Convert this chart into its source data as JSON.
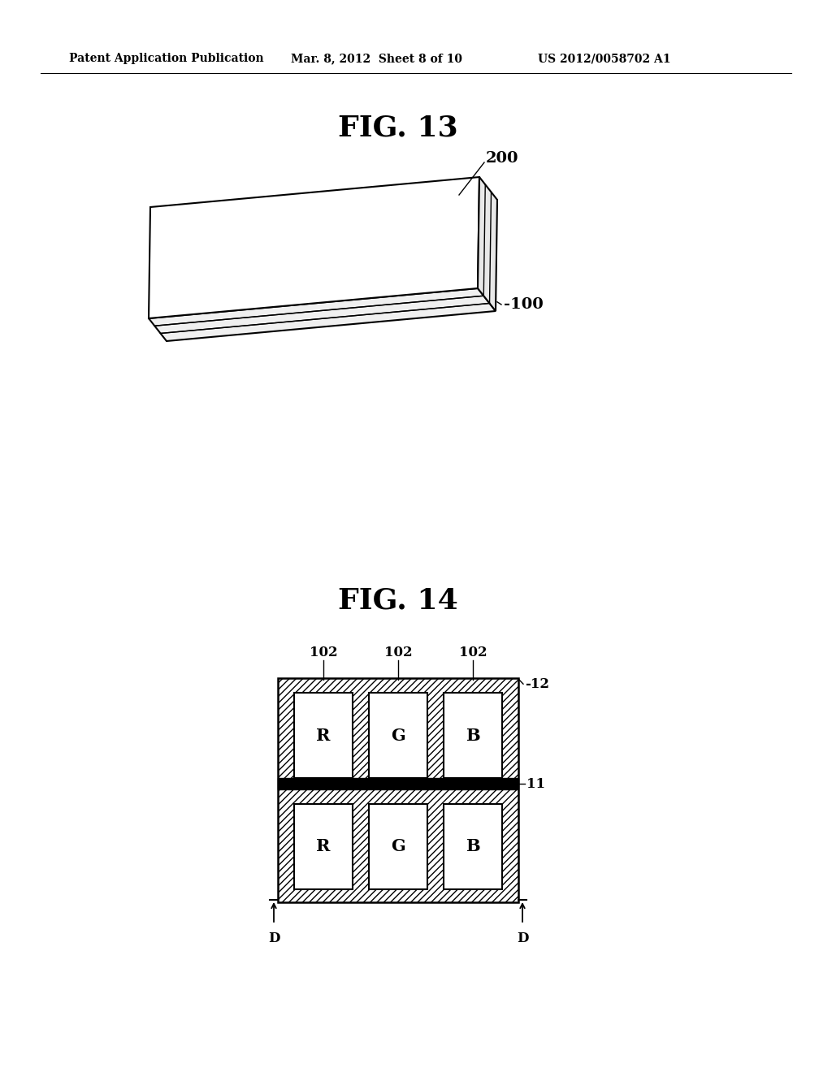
{
  "bg_color": "#ffffff",
  "text_color": "#000000",
  "header_left": "Patent Application Publication",
  "header_mid": "Mar. 8, 2012  Sheet 8 of 10",
  "header_right": "US 2012/0058702 A1",
  "fig13_title": "FIG. 13",
  "fig14_title": "FIG. 14",
  "label_200": "200",
  "label_100": "-100",
  "label_102": "102",
  "label_12": "-12",
  "label_11": "11",
  "label_D": "D"
}
